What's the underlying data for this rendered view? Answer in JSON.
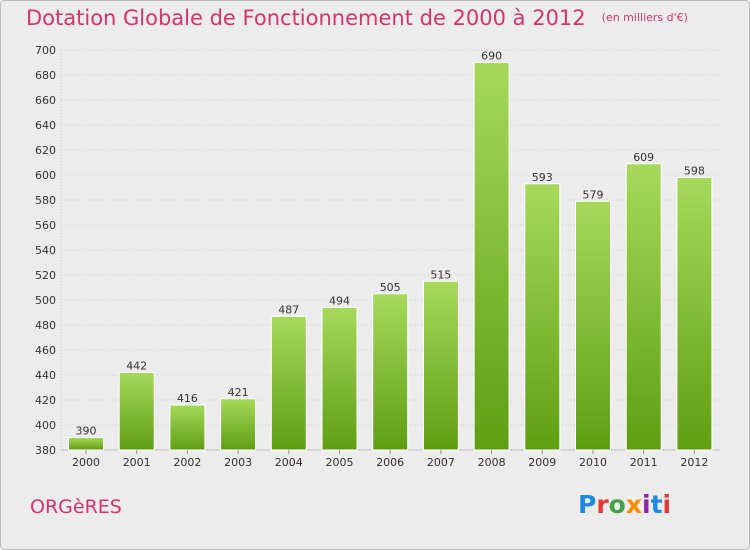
{
  "header": {
    "title": "Dotation Globale de Fonctionnement de 2000 à 2012",
    "unit": "(en milliers d'€)"
  },
  "footer": {
    "commune": "ORGèRES",
    "logo": "Proxiti"
  },
  "colors": {
    "title": "#d6336c",
    "bar_light": "#a6d95a",
    "bar_dark": "#5f9e12",
    "logo_letters": [
      "#1e88e5",
      "#e53935",
      "#43a047",
      "#fb8c00",
      "#8e24aa",
      "#1e88e5",
      "#e53935"
    ]
  },
  "chart_data": {
    "type": "bar",
    "title": "Dotation Globale de Fonctionnement de 2000 à 2012",
    "subtitle": "(en milliers d'€)",
    "categories": [
      "2000",
      "2001",
      "2002",
      "2003",
      "2004",
      "2005",
      "2006",
      "2007",
      "2008",
      "2009",
      "2010",
      "2011",
      "2012"
    ],
    "values": [
      390,
      442,
      416,
      421,
      487,
      494,
      505,
      515,
      690,
      593,
      579,
      609,
      598
    ],
    "ylim": [
      380,
      700
    ],
    "yticks": [
      380,
      400,
      420,
      440,
      460,
      480,
      500,
      520,
      540,
      560,
      580,
      600,
      620,
      640,
      660,
      680,
      700
    ],
    "grid": true,
    "legend": "none"
  }
}
